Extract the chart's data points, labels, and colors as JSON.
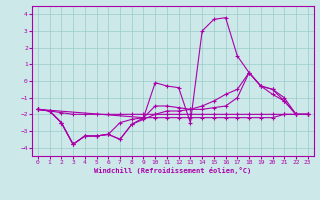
{
  "xlabel": "Windchill (Refroidissement éolien,°C)",
  "bg_color": "#cce8e8",
  "grid_color": "#99cccc",
  "line_color": "#aa00aa",
  "xlim": [
    -0.5,
    23.5
  ],
  "ylim": [
    -4.5,
    4.5
  ],
  "xticks": [
    0,
    1,
    2,
    3,
    4,
    5,
    6,
    7,
    8,
    9,
    10,
    11,
    12,
    13,
    14,
    15,
    16,
    17,
    18,
    19,
    20,
    21,
    22,
    23
  ],
  "yticks": [
    -4,
    -3,
    -2,
    -1,
    0,
    1,
    2,
    3,
    4
  ],
  "line1_x": [
    0,
    1,
    2,
    3,
    4,
    5,
    6,
    7,
    8,
    9,
    10,
    11,
    12,
    13,
    14,
    15,
    16,
    17,
    18,
    19,
    20,
    21,
    22,
    23
  ],
  "line1_y": [
    -1.7,
    -1.8,
    -1.9,
    -2.0,
    -2.0,
    -2.0,
    -2.0,
    -2.0,
    -2.0,
    -2.0,
    -2.0,
    -2.0,
    -2.0,
    -2.0,
    -2.0,
    -2.0,
    -2.0,
    -2.0,
    -2.0,
    -2.0,
    -2.0,
    -2.0,
    -2.0,
    -2.0
  ],
  "line2_x": [
    0,
    1,
    2,
    3,
    4,
    5,
    6,
    7,
    8,
    9,
    10,
    11,
    12,
    13,
    14,
    15,
    16,
    17,
    18,
    19,
    20,
    21,
    22,
    23
  ],
  "line2_y": [
    -1.7,
    -1.8,
    -2.5,
    -3.8,
    -3.3,
    -3.3,
    -3.2,
    -2.5,
    -2.3,
    -2.2,
    -2.2,
    -2.2,
    -2.2,
    -2.2,
    -2.2,
    -2.2,
    -2.2,
    -2.2,
    -2.2,
    -2.2,
    -2.2,
    -2.0,
    -2.0,
    -2.0
  ],
  "line3_x": [
    0,
    1,
    2,
    3,
    4,
    5,
    6,
    7,
    8,
    9,
    10,
    11,
    12,
    13,
    14,
    15,
    16,
    17,
    18,
    19,
    20,
    21,
    22,
    23
  ],
  "line3_y": [
    -1.7,
    -1.8,
    -2.5,
    -3.8,
    -3.3,
    -3.3,
    -3.2,
    -3.5,
    -2.6,
    -2.3,
    -2.0,
    -1.8,
    -1.8,
    -1.7,
    -1.5,
    -1.2,
    -0.8,
    -0.5,
    0.5,
    -0.3,
    -0.5,
    -1.0,
    -2.0,
    -2.0
  ],
  "line4_x": [
    0,
    1,
    2,
    3,
    4,
    5,
    6,
    7,
    8,
    9,
    10,
    11,
    12,
    13,
    14,
    15,
    16,
    17,
    18,
    19,
    20,
    21,
    22,
    23
  ],
  "line4_y": [
    -1.7,
    -1.8,
    -2.5,
    -3.8,
    -3.3,
    -3.3,
    -3.2,
    -3.5,
    -2.6,
    -2.2,
    -0.1,
    -0.3,
    -0.4,
    -2.5,
    3.0,
    3.7,
    3.8,
    1.5,
    0.5,
    -0.3,
    -0.8,
    -1.2,
    -2.0,
    -2.0
  ],
  "line5_x": [
    0,
    9,
    10,
    11,
    12,
    13,
    14,
    15,
    16,
    17,
    18,
    19,
    20,
    21,
    22,
    23
  ],
  "line5_y": [
    -1.7,
    -2.2,
    -1.5,
    -1.5,
    -1.6,
    -1.7,
    -1.7,
    -1.6,
    -1.5,
    -1.0,
    0.5,
    -0.3,
    -0.5,
    -1.2,
    -2.0,
    -2.0
  ],
  "marker": "+",
  "markersize": 3,
  "linewidth": 0.8
}
